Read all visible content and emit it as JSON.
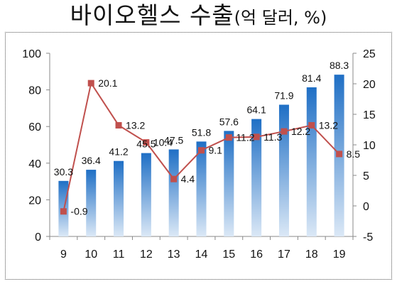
{
  "title": {
    "main": "바이오헬스 수출",
    "unit": "(억 달러, %)"
  },
  "chart_data": {
    "type": "bar",
    "categories": [
      "9",
      "10",
      "11",
      "12",
      "13",
      "14",
      "15",
      "16",
      "17",
      "18",
      "19"
    ],
    "series": [
      {
        "type": "bar",
        "axis": "left",
        "values": [
          30.3,
          36.4,
          41.2,
          45.5,
          47.5,
          51.8,
          57.6,
          64.1,
          71.9,
          81.4,
          88.3
        ],
        "labels": [
          "30.3",
          "36.4",
          "41.2",
          "45.5",
          "47.5",
          "51.8",
          "57.6",
          "64.1",
          "71.9",
          "81.4",
          "88.3"
        ]
      },
      {
        "type": "line",
        "axis": "right",
        "values": [
          -0.9,
          20.1,
          13.2,
          10.4,
          4.4,
          9.1,
          11.2,
          11.3,
          12.2,
          13.2,
          8.5
        ],
        "labels": [
          "-0.9",
          "20.1",
          "13.2",
          "10.4",
          "4.4",
          "9.1",
          "11.2",
          "11.3",
          "12.2",
          "13.2",
          "8.5"
        ]
      }
    ],
    "y_left": {
      "range": [
        0,
        100
      ],
      "ticks": [
        "0",
        "20",
        "40",
        "60",
        "80",
        "100"
      ]
    },
    "y_right": {
      "range": [
        -5,
        25
      ],
      "ticks": [
        "-5",
        "0",
        "5",
        "10",
        "15",
        "20",
        "25"
      ]
    },
    "grid": false,
    "colors": {
      "bar_top": "#1f6fc5",
      "bar_bottom": "#dbe8f6",
      "line": "#c0504d"
    }
  }
}
